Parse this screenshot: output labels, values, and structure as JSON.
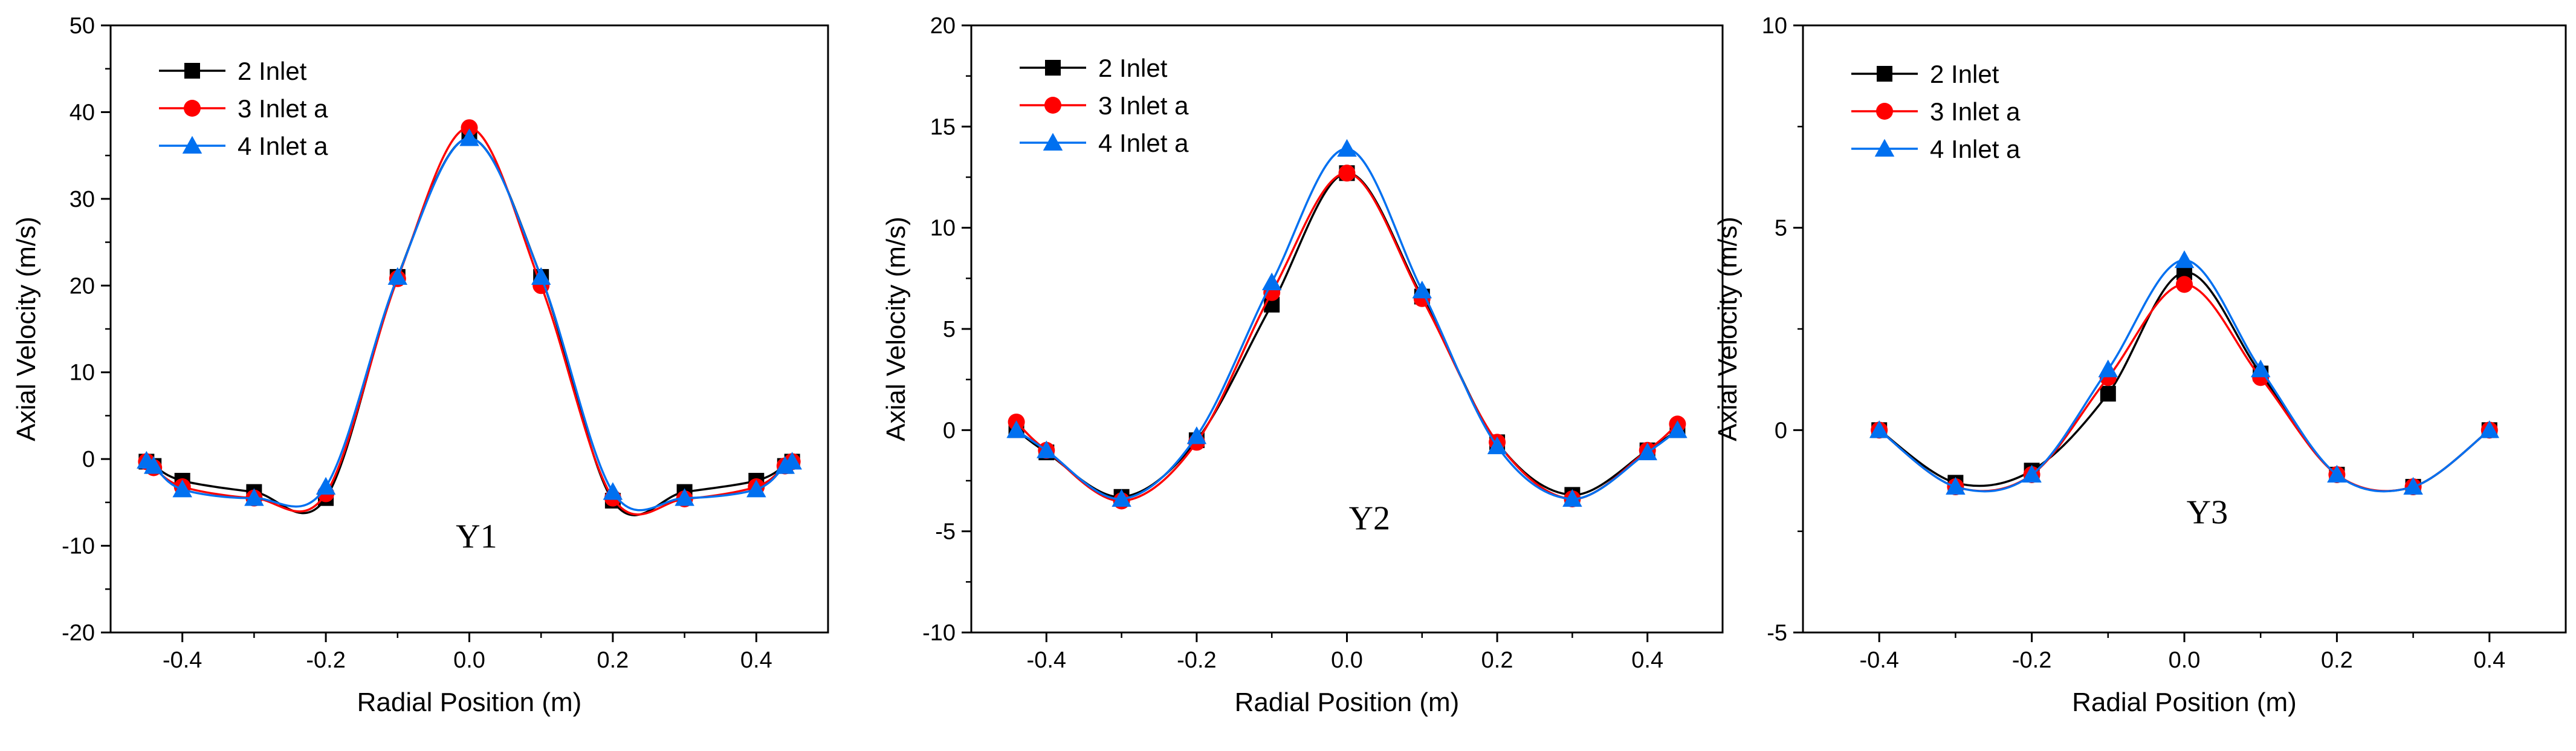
{
  "series_styles": [
    {
      "name": "2 Inlet",
      "color": "#000000",
      "marker": "square"
    },
    {
      "name": "3 Inlet a",
      "color": "#ff0000",
      "marker": "circle"
    },
    {
      "name": "4 Inlet a",
      "color": "#0070f0",
      "marker": "triangle"
    }
  ],
  "chart_data": [
    {
      "type": "line",
      "panel_label": "Y1",
      "xlabel": "Radial Position (m)",
      "ylabel": "Axial Velocity (m/s)",
      "xlim": [
        -0.5,
        0.5
      ],
      "ylim": [
        -20,
        50
      ],
      "xticks": [
        -0.4,
        -0.2,
        0.0,
        0.2,
        0.4
      ],
      "xtick_labels": [
        "-0.4",
        "-0.2",
        "0.0",
        "0.2",
        "0.4"
      ],
      "yticks": [
        -20,
        -10,
        0,
        10,
        20,
        30,
        40,
        50
      ],
      "ytick_labels": [
        "-20",
        "-10",
        "0",
        "10",
        "20",
        "30",
        "40",
        "50"
      ],
      "legend_position": "top-left",
      "series": [
        {
          "name": "2 Inlet",
          "x": [
            -0.45,
            -0.44,
            -0.4,
            -0.3,
            -0.2,
            -0.1,
            0.0,
            0.1,
            0.2,
            0.3,
            0.4,
            0.44,
            0.45
          ],
          "y": [
            -0.3,
            -0.8,
            -2.5,
            -3.8,
            -4.5,
            21.0,
            37.0,
            21.0,
            -4.8,
            -3.8,
            -2.5,
            -0.8,
            -0.3
          ]
        },
        {
          "name": "3 Inlet a",
          "x": [
            -0.45,
            -0.44,
            -0.4,
            -0.3,
            -0.2,
            -0.1,
            0.0,
            0.1,
            0.2,
            0.3,
            0.4,
            0.44,
            0.45
          ],
          "y": [
            -0.3,
            -1.0,
            -3.2,
            -4.5,
            -4.0,
            20.8,
            38.2,
            20.0,
            -4.5,
            -4.6,
            -3.2,
            -0.8,
            -0.3
          ]
        },
        {
          "name": "4 Inlet a",
          "x": [
            -0.45,
            -0.44,
            -0.4,
            -0.3,
            -0.2,
            -0.1,
            0.0,
            0.1,
            0.2,
            0.3,
            0.4,
            0.44,
            0.45
          ],
          "y": [
            -0.2,
            -0.8,
            -3.5,
            -4.5,
            -3.2,
            21.0,
            37.0,
            21.0,
            -3.8,
            -4.5,
            -3.5,
            -0.8,
            -0.3
          ]
        }
      ]
    },
    {
      "type": "line",
      "panel_label": "Y2",
      "xlabel": "Radial Position (m)",
      "ylabel": "Axial Velocity (m/s)",
      "xlim": [
        -0.5,
        0.5
      ],
      "ylim": [
        -10,
        20
      ],
      "xticks": [
        -0.4,
        -0.2,
        0.0,
        0.2,
        0.4
      ],
      "xtick_labels": [
        "-0.4",
        "-0.2",
        "0.0",
        "0.2",
        "0.4"
      ],
      "yticks": [
        -10,
        -5,
        0,
        5,
        10,
        15,
        20
      ],
      "ytick_labels": [
        "-10",
        "-5",
        "0",
        "5",
        "10",
        "15",
        "20"
      ],
      "legend_position": "top-left",
      "series": [
        {
          "name": "2 Inlet",
          "x": [
            -0.44,
            -0.4,
            -0.3,
            -0.2,
            -0.1,
            0.0,
            0.1,
            0.2,
            0.3,
            0.4,
            0.44
          ],
          "y": [
            0.0,
            -1.1,
            -3.3,
            -0.5,
            6.2,
            12.7,
            6.6,
            -0.6,
            -3.2,
            -1.0,
            0.0
          ]
        },
        {
          "name": "3 Inlet a",
          "x": [
            -0.44,
            -0.4,
            -0.3,
            -0.2,
            -0.1,
            0.0,
            0.1,
            0.2,
            0.3,
            0.4,
            0.44
          ],
          "y": [
            0.4,
            -1.0,
            -3.5,
            -0.6,
            6.8,
            12.7,
            6.5,
            -0.6,
            -3.4,
            -1.0,
            0.3
          ]
        },
        {
          "name": "4 Inlet a",
          "x": [
            -0.44,
            -0.4,
            -0.3,
            -0.2,
            -0.1,
            0.0,
            0.1,
            0.2,
            0.3,
            0.4,
            0.44
          ],
          "y": [
            0.0,
            -1.0,
            -3.4,
            -0.3,
            7.3,
            13.9,
            6.9,
            -0.8,
            -3.4,
            -1.1,
            0.0
          ]
        }
      ]
    },
    {
      "type": "line",
      "panel_label": "Y3",
      "xlabel": "Radial Position (m)",
      "ylabel": "Axial Velocity (m/s)",
      "xlim": [
        -0.5,
        0.5
      ],
      "ylim": [
        -5,
        10
      ],
      "xticks": [
        -0.4,
        -0.2,
        0.0,
        0.2,
        0.4
      ],
      "xtick_labels": [
        "-0.4",
        "-0.2",
        "0.0",
        "0.2",
        "0.4"
      ],
      "yticks": [
        -5,
        0,
        5,
        10
      ],
      "ytick_labels": [
        "-5",
        "0",
        "5",
        "10"
      ],
      "legend_position": "top-left",
      "series": [
        {
          "name": "2 Inlet",
          "x": [
            -0.4,
            -0.3,
            -0.2,
            -0.1,
            0.0,
            0.1,
            0.2,
            0.3,
            0.4
          ],
          "y": [
            0.0,
            -1.3,
            -1.0,
            0.9,
            3.9,
            1.4,
            -1.1,
            -1.4,
            0.0
          ]
        },
        {
          "name": "3 Inlet a",
          "x": [
            -0.4,
            -0.3,
            -0.2,
            -0.1,
            0.0,
            0.1,
            0.2,
            0.3,
            0.4
          ],
          "y": [
            0.0,
            -1.4,
            -1.1,
            1.3,
            3.6,
            1.3,
            -1.1,
            -1.4,
            0.0
          ]
        },
        {
          "name": "4 Inlet a",
          "x": [
            -0.4,
            -0.3,
            -0.2,
            -0.1,
            0.0,
            0.1,
            0.2,
            0.3,
            0.4
          ],
          "y": [
            0.0,
            -1.4,
            -1.1,
            1.5,
            4.2,
            1.5,
            -1.1,
            -1.4,
            0.0
          ]
        }
      ]
    }
  ]
}
